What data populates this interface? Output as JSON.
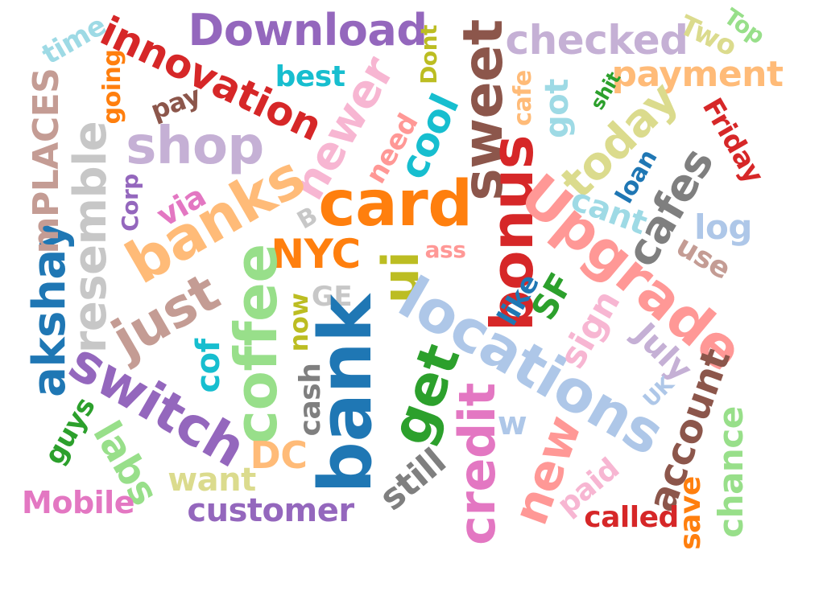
{
  "words": [
    {
      "text": "Download",
      "color": "#9467bd",
      "vertical": false
    },
    {
      "text": "innovation",
      "color": "#d62728",
      "vertical": false,
      "angle": 25
    },
    {
      "text": "time",
      "color": "#9edae5",
      "vertical": false,
      "angle": -30
    },
    {
      "text": "going",
      "color": "#ff7f0e",
      "vertical": true
    },
    {
      "text": "pay",
      "color": "#8c564b",
      "vertical": false,
      "angle": -20
    },
    {
      "text": "best",
      "color": "#17becf",
      "vertical": false
    },
    {
      "text": "Dont",
      "color": "#bcbd22",
      "vertical": true
    },
    {
      "text": "checked",
      "color": "#c5b0d5",
      "vertical": false
    },
    {
      "text": "Two",
      "color": "#dbdb8d",
      "vertical": false,
      "angle": 25
    },
    {
      "text": "Top",
      "color": "#98df8a",
      "vertical": false,
      "angle": 35
    },
    {
      "text": "payment",
      "color": "#ffbb78",
      "vertical": false
    },
    {
      "text": "akshay",
      "color": "#1f77b4",
      "vertical": true
    },
    {
      "text": "mPLACES",
      "color": "#c49c94",
      "vertical": true
    },
    {
      "text": "resemble",
      "color": "#c7c7c7",
      "vertical": true
    },
    {
      "text": "shop",
      "color": "#c5b0d5",
      "vertical": false
    },
    {
      "text": "newer",
      "color": "#f7b6d2",
      "vertical": false,
      "angle": -60
    },
    {
      "text": "cool",
      "color": "#17becf",
      "vertical": false,
      "angle": -65
    },
    {
      "text": "need",
      "color": "#ff9896",
      "vertical": false,
      "angle": -60
    },
    {
      "text": "sweet",
      "color": "#8c564b",
      "vertical": true
    },
    {
      "text": "got",
      "color": "#9edae5",
      "vertical": true
    },
    {
      "text": "cafe",
      "color": "#ffbb78",
      "vertical": true
    },
    {
      "text": "shit",
      "color": "#2ca02c",
      "vertical": false,
      "angle": -60
    },
    {
      "text": "today",
      "color": "#dbdb8d",
      "vertical": false,
      "angle": -45
    },
    {
      "text": "Friday",
      "color": "#d62728",
      "vertical": false,
      "angle": 60
    },
    {
      "text": "Corp",
      "color": "#9467bd",
      "vertical": true
    },
    {
      "text": "via",
      "color": "#e377c2",
      "vertical": false,
      "angle": -30
    },
    {
      "text": "banks",
      "color": "#ffbb78",
      "vertical": false,
      "angle": -30
    },
    {
      "text": "card",
      "color": "#ff7f0e",
      "vertical": false
    },
    {
      "text": "bonus",
      "color": "#d62728",
      "vertical": true
    },
    {
      "text": "cant",
      "color": "#9edae5",
      "vertical": false,
      "angle": 20
    },
    {
      "text": "loan",
      "color": "#1f77b4",
      "vertical": false,
      "angle": -60
    },
    {
      "text": "cafes",
      "color": "#7f7f7f",
      "vertical": false,
      "angle": -60
    },
    {
      "text": "log",
      "color": "#aec7e8",
      "vertical": false
    },
    {
      "text": "B",
      "color": "#c7c7c7",
      "vertical": false,
      "angle": -30
    },
    {
      "text": "NYC",
      "color": "#ff7f0e",
      "vertical": false
    },
    {
      "text": "ass",
      "color": "#ff9896",
      "vertical": false
    },
    {
      "text": "Upgrade",
      "color": "#ff9896",
      "vertical": false,
      "angle": 40
    },
    {
      "text": "use",
      "color": "#c49c94",
      "vertical": false,
      "angle": 30
    },
    {
      "text": "just",
      "color": "#c49c94",
      "vertical": false,
      "angle": -30
    },
    {
      "text": "coffee",
      "color": "#98df8a",
      "vertical": true
    },
    {
      "text": "now",
      "color": "#bcbd22",
      "vertical": true
    },
    {
      "text": "GE",
      "color": "#c7c7c7",
      "vertical": false
    },
    {
      "text": "ui",
      "color": "#bcbd22",
      "vertical": true
    },
    {
      "text": "locations",
      "color": "#aec7e8",
      "vertical": false,
      "angle": 30
    },
    {
      "text": "like",
      "color": "#1f77b4",
      "vertical": false,
      "angle": -60
    },
    {
      "text": "SF",
      "color": "#2ca02c",
      "vertical": false,
      "angle": -60
    },
    {
      "text": "sign",
      "color": "#f7b6d2",
      "vertical": false,
      "angle": -60
    },
    {
      "text": "July",
      "color": "#c5b0d5",
      "vertical": false,
      "angle": 45
    },
    {
      "text": "switch",
      "color": "#9467bd",
      "vertical": false,
      "angle": 30
    },
    {
      "text": "cof",
      "color": "#17becf",
      "vertical": true
    },
    {
      "text": "bank",
      "color": "#1f77b4",
      "vertical": true
    },
    {
      "text": "get",
      "color": "#2ca02c",
      "vertical": false,
      "angle": -70
    },
    {
      "text": "UK",
      "color": "#aec7e8",
      "vertical": false,
      "angle": -45
    },
    {
      "text": "account",
      "color": "#8c564b",
      "vertical": false,
      "angle": -70
    },
    {
      "text": "guys",
      "color": "#2ca02c",
      "vertical": false,
      "angle": -60
    },
    {
      "text": "cash",
      "color": "#7f7f7f",
      "vertical": true
    },
    {
      "text": "credit",
      "color": "#e377c2",
      "vertical": true
    },
    {
      "text": "w",
      "color": "#aec7e8",
      "vertical": false
    },
    {
      "text": "chance",
      "color": "#98df8a",
      "vertical": true
    },
    {
      "text": "labs",
      "color": "#98df8a",
      "vertical": false,
      "angle": 60
    },
    {
      "text": "DC",
      "color": "#ffbb78",
      "vertical": false
    },
    {
      "text": "new",
      "color": "#ff9896",
      "vertical": false,
      "angle": -70
    },
    {
      "text": "want",
      "color": "#dbdb8d",
      "vertical": false
    },
    {
      "text": "still",
      "color": "#7f7f7f",
      "vertical": false,
      "angle": -40
    },
    {
      "text": "paid",
      "color": "#f7b6d2",
      "vertical": false,
      "angle": -40
    },
    {
      "text": "save",
      "color": "#ff7f0e",
      "vertical": true
    },
    {
      "text": "Mobile",
      "color": "#e377c2",
      "vertical": false
    },
    {
      "text": "customer",
      "color": "#9467bd",
      "vertical": false
    },
    {
      "text": "called",
      "color": "#d62728",
      "vertical": false
    }
  ]
}
